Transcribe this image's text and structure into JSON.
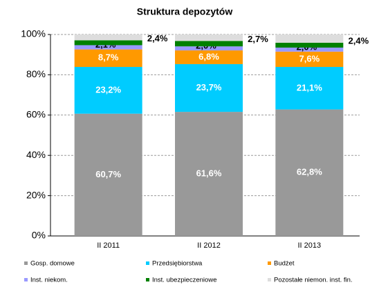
{
  "chart_data": {
    "type": "stacked_bar",
    "title": "Struktura depozytów",
    "categories": [
      "II 2011",
      "II 2012",
      "II 2013"
    ],
    "series": [
      {
        "name": "Gosp. domowe",
        "color": "#999999",
        "values": [
          60.7,
          61.6,
          62.8
        ],
        "value_labels": [
          "60,7%",
          "61,6%",
          "62,8%"
        ]
      },
      {
        "name": "Przedsiębiorstwa",
        "color": "#00ccff",
        "values": [
          23.2,
          23.7,
          21.1
        ],
        "value_labels": [
          "23,2%",
          "23,7%",
          "21,1%"
        ]
      },
      {
        "name": "Budżet",
        "color": "#ff9900",
        "values": [
          8.7,
          6.8,
          7.6
        ],
        "value_labels": [
          "8,7%",
          "6,8%",
          "7,6%"
        ]
      },
      {
        "name": "Inst. niekom.",
        "color": "#9999ff",
        "values": [
          2.1,
          2.0,
          2.0
        ],
        "value_labels": [
          "2,1%",
          "2,0%",
          "2,0%"
        ]
      },
      {
        "name": "Inst. ubezpieczeniowe",
        "color": "#008000",
        "values": [
          2.4,
          2.7,
          2.4
        ],
        "value_labels": [
          "2,4%",
          "2,7%",
          "2,4%"
        ]
      },
      {
        "name": "Pozostałe niemon. inst. fin.",
        "color": "#dddddd",
        "values": [
          2.9,
          3.2,
          4.1
        ]
      }
    ],
    "ylim": [
      0,
      100
    ],
    "yticks": [
      {
        "value": 0,
        "label": "0%"
      },
      {
        "value": 20,
        "label": "20%"
      },
      {
        "value": 40,
        "label": "40%"
      },
      {
        "value": 60,
        "label": "60%"
      },
      {
        "value": 80,
        "label": "80%"
      },
      {
        "value": 100,
        "label": "100%"
      }
    ],
    "grid": true,
    "legend": "bottom"
  }
}
